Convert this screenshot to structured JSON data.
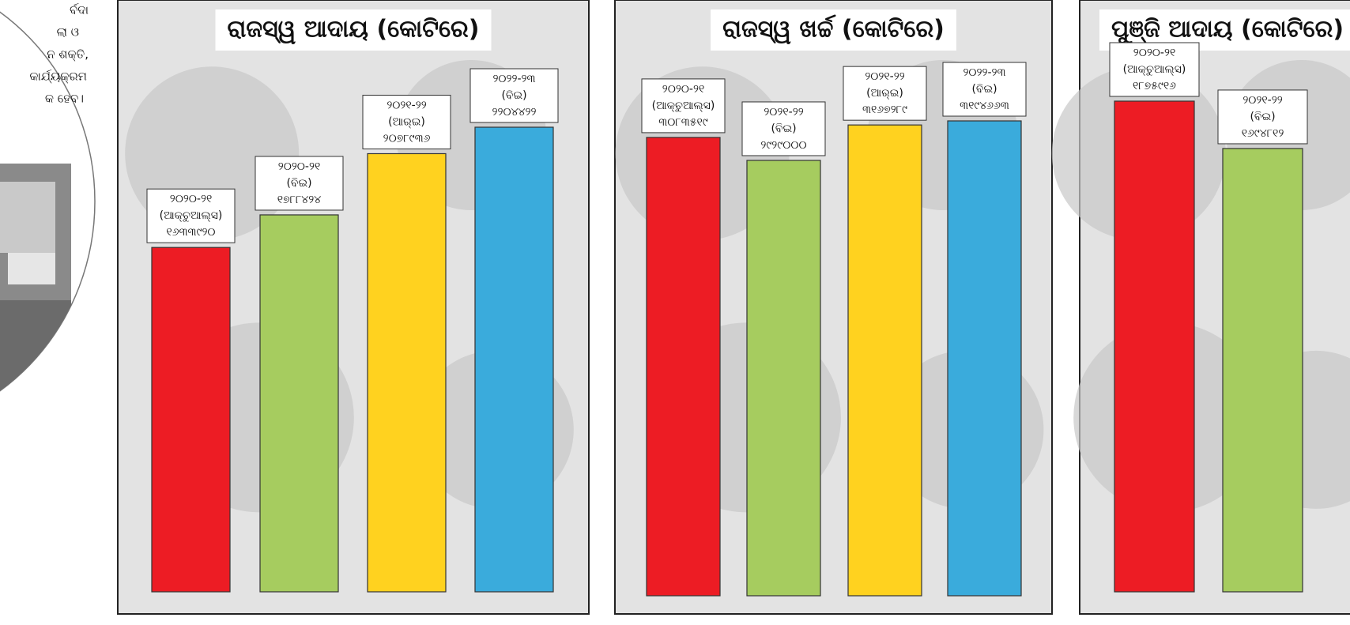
{
  "article_fragment": [
    "ର୍ବଦା",
    "ଲା ଓ",
    "ନ ଶକ୍ତି,",
    "କାର୍ଯ୍ୟକ୍ରମ",
    "କ ହେବ।"
  ],
  "chart_data": [
    {
      "type": "bar",
      "title": "ରାଜସ୍ୱ ଆଦାୟ (କୋଟିରେ)",
      "periods": [
        "୨୦୨୦-୨୧",
        "୨୦୨୦-୨୧",
        "୨୦୨୧-୨୨",
        "୨୦୨୨-୨୩"
      ],
      "kinds": [
        "(ଆକ୍ଚୁଆଲ୍ସ)",
        "(ବିଇ)",
        "(ଆର୍‌ଇ)",
        "(ବିଇ)"
      ],
      "values": [
        1633920,
        1788424,
        2078936,
        2204422
      ],
      "value_labels": [
        "୧୬୩୩୯୨୦",
        "୧୭୮୮୪୨୪",
        "୨୦୭୮୯୩୬",
        "୨୨୦୪୪୨୨"
      ],
      "colors": [
        "#ed1c24",
        "#a6cc5f",
        "#ffd21f",
        "#3aabdc"
      ]
    },
    {
      "type": "bar",
      "title": "ରାଜସ୍ୱ ଖର୍ଚ୍ଚ (କୋଟିରେ)",
      "periods": [
        "୨୦୨୦-୨୧",
        "୨୦୨୧-୨୨",
        "୨୦୨୧-୨୨",
        "୨୦୨୨-୨୩"
      ],
      "kinds": [
        "(ଆକ୍ଚୁଆଲ୍ସ)",
        "(ବିଇ)",
        "(ଆର୍‌ଇ)",
        "(ବିଇ)"
      ],
      "values": [
        3083519,
        2929000,
        3167289,
        3194663
      ],
      "value_labels": [
        "୩୦୮୩୫୧୯",
        "୨୯୨୯୦୦୦",
        "୩୧୬୭୨୮୯",
        "୩୧୯୪୬୬୩"
      ],
      "colors": [
        "#ed1c24",
        "#a6cc5f",
        "#ffd21f",
        "#3aabdc"
      ]
    },
    {
      "type": "bar",
      "title": "ପୁଞ୍ଜି ଆଦାୟ (କୋଟିରେ)",
      "periods": [
        "୨୦୨୦-୨୧",
        "୨୦୨୧-୨୨"
      ],
      "kinds": [
        "(ଆକ୍ଚୁଆଲ୍ସ)",
        "(ବିଇ)"
      ],
      "values": [
        1875916,
        1694812
      ],
      "value_labels": [
        "୧୮୭୫୯୧୬",
        "୧୬୯୪୮୧୨"
      ],
      "colors": [
        "#ed1c24",
        "#a6cc5f"
      ]
    }
  ]
}
